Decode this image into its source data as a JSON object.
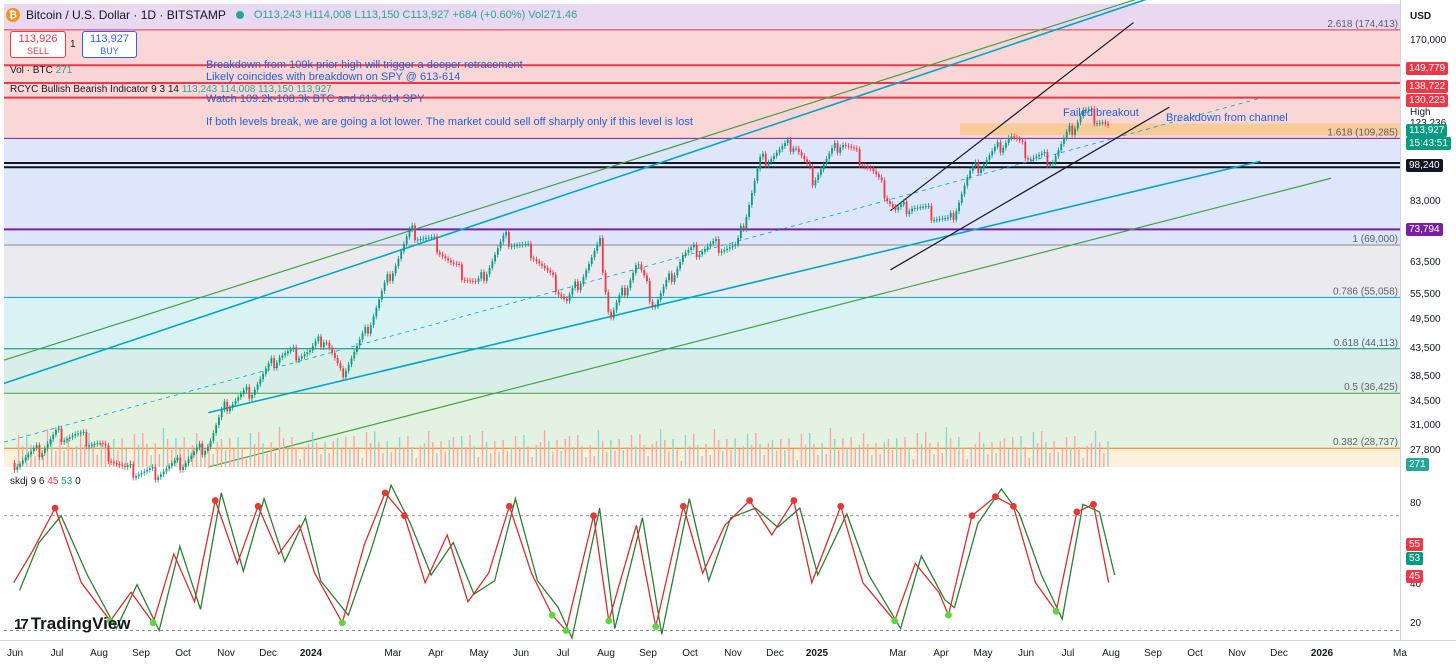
{
  "header": {
    "symbol": "Bitcoin / U.S. Dollar · 1D · BITSTAMP",
    "open": "O113,243",
    "high": "H114,008",
    "low": "L113,150",
    "close": "C113,927",
    "change": "+684 (+0.60%)",
    "volume": "Vol271.46",
    "sell_price": "113,926",
    "sell_label": "SELL",
    "buy_price": "113,927",
    "buy_label": "BUY",
    "quantity": "1",
    "vol_label": "Vol · BTC",
    "vol_value": "271",
    "indicator_label": "RCYC Bullish Bearish Indicator 9 3 14",
    "indicator_values": "113,243  114,008  113,150  113,927"
  },
  "annotations": [
    "Breakdown from 109k prior high will trigger a deeper retracement",
    "Likely coincides with breakdown on SPY @ 613-614",
    "Watch 109.2k-108.3k BTC and 613-614 SPY",
    "If both levels break, we are going a lot lower. The market could sell off sharply only if this level is lost",
    "Failed breakout",
    "Breakdown from channel"
  ],
  "price_axis": {
    "currency": "USD",
    "ticks": [
      "170,000",
      "83,000",
      "63,500",
      "55,500",
      "49,500",
      "43,500",
      "38,500",
      "34,500",
      "31,000",
      "27,800"
    ],
    "tags": [
      {
        "text": "149,779",
        "color": "#f23645"
      },
      {
        "text": "138,722",
        "color": "#f23645"
      },
      {
        "text": "130,223",
        "color": "#f23645"
      },
      {
        "text": "113,927",
        "color": "#089981"
      },
      {
        "text": "15:43:51",
        "color": "#089981"
      },
      {
        "text": "98,240",
        "color": "#131722"
      },
      {
        "text": "73,794",
        "color": "#7b1fa2"
      },
      {
        "text": "271",
        "color": "#26a69a"
      }
    ],
    "high_label": "High",
    "high_value": "123,236"
  },
  "fib_labels": [
    "2.618 (174,413)",
    "1.618 (109,285)",
    "1 (69,000)",
    "0.786 (55,058)",
    "0.618 (44,113)",
    "0.5 (36,425)",
    "0.382 (28,737)"
  ],
  "oscillator": {
    "name": "skdj",
    "p1": "9",
    "p2": "6",
    "k_value": "45",
    "d_value": "53",
    "zero": "0",
    "ticks": [
      "80",
      "40",
      "20"
    ],
    "tags": [
      {
        "text": "55",
        "color": "#f23645"
      },
      {
        "text": "53",
        "color": "#089981"
      },
      {
        "text": "45",
        "color": "#f23645"
      }
    ]
  },
  "time_axis": [
    {
      "label": "Jun",
      "bold": false
    },
    {
      "label": "Jul",
      "bold": false
    },
    {
      "label": "Aug",
      "bold": false
    },
    {
      "label": "Sep",
      "bold": false
    },
    {
      "label": "Oct",
      "bold": false
    },
    {
      "label": "Nov",
      "bold": false
    },
    {
      "label": "Dec",
      "bold": false
    },
    {
      "label": "2024",
      "bold": true
    },
    {
      "label": "Mar",
      "bold": false
    },
    {
      "label": "Apr",
      "bold": false
    },
    {
      "label": "May",
      "bold": false
    },
    {
      "label": "Jun",
      "bold": false
    },
    {
      "label": "Jul",
      "bold": false
    },
    {
      "label": "Aug",
      "bold": false
    },
    {
      "label": "Sep",
      "bold": false
    },
    {
      "label": "Oct",
      "bold": false
    },
    {
      "label": "Nov",
      "bold": false
    },
    {
      "label": "Dec",
      "bold": false
    },
    {
      "label": "2025",
      "bold": true
    },
    {
      "label": "Mar",
      "bold": false
    },
    {
      "label": "Apr",
      "bold": false
    },
    {
      "label": "May",
      "bold": false
    },
    {
      "label": "Jun",
      "bold": false
    },
    {
      "label": "Jul",
      "bold": false
    },
    {
      "label": "Aug",
      "bold": false
    },
    {
      "label": "Sep",
      "bold": false
    },
    {
      "label": "Oct",
      "bold": false
    },
    {
      "label": "Nov",
      "bold": false
    },
    {
      "label": "Dec",
      "bold": false
    },
    {
      "label": "2026",
      "bold": true
    },
    {
      "label": "Ma",
      "bold": false
    }
  ],
  "branding": {
    "logo_text": "TradingView"
  },
  "colors": {
    "up": "#089981",
    "down": "#f23645",
    "channel": "#00a6c8",
    "long_channel": "#43a047",
    "resistance": "#f23645",
    "support": "#131722",
    "pivot": "#7b1fa2",
    "fib_zone": "#f5a623"
  },
  "chart_data": {
    "type": "candlestick",
    "title": "Bitcoin / U.S. Dollar · 1D · BITSTAMP",
    "y_scale": "log",
    "ylim": [
      26500,
      195000
    ],
    "x_range": [
      "2023-05-25",
      "2026-03-01"
    ],
    "horizontal_levels": [
      {
        "value": 174413,
        "label": "2.618 (174,413)"
      },
      {
        "value": 149779
      },
      {
        "value": 138722
      },
      {
        "value": 130223
      },
      {
        "value": 109285,
        "label": "1.618 (109,285)"
      },
      {
        "value": 98240
      },
      {
        "value": 73794
      },
      {
        "value": 69000,
        "label": "1 (69,000)"
      },
      {
        "value": 55058,
        "label": "0.786 (55,058)"
      },
      {
        "value": 44113,
        "label": "0.618 (44,113)"
      },
      {
        "value": 36425,
        "label": "0.5 (36,425)"
      },
      {
        "value": 28737,
        "label": "0.382 (28,737)"
      }
    ],
    "price_path": [
      [
        "2023-06-01",
        27000
      ],
      [
        "2023-06-20",
        28500
      ],
      [
        "2023-07-01",
        30500
      ],
      [
        "2023-07-15",
        30300
      ],
      [
        "2023-08-01",
        29200
      ],
      [
        "2023-08-20",
        26100
      ],
      [
        "2023-09-10",
        25800
      ],
      [
        "2023-10-01",
        27000
      ],
      [
        "2023-10-20",
        29500
      ],
      [
        "2023-11-01",
        34500
      ],
      [
        "2023-11-20",
        37000
      ],
      [
        "2023-12-10",
        43000
      ],
      [
        "2024-01-01",
        43500
      ],
      [
        "2024-01-12",
        46500
      ],
      [
        "2024-01-23",
        39500
      ],
      [
        "2024-02-10",
        47000
      ],
      [
        "2024-02-28",
        61000
      ],
      [
        "2024-03-14",
        73000
      ],
      [
        "2024-04-01",
        69500
      ],
      [
        "2024-04-13",
        63000
      ],
      [
        "2024-05-01",
        58000
      ],
      [
        "2024-05-21",
        71000
      ],
      [
        "2024-06-10",
        67000
      ],
      [
        "2024-07-05",
        54000
      ],
      [
        "2024-07-29",
        69000
      ],
      [
        "2024-08-05",
        50000
      ],
      [
        "2024-08-25",
        64000
      ],
      [
        "2024-09-06",
        53000
      ],
      [
        "2024-09-27",
        66000
      ],
      [
        "2024-10-20",
        69000
      ],
      [
        "2024-11-05",
        68000
      ],
      [
        "2024-11-22",
        99000
      ],
      [
        "2024-12-17",
        107000
      ],
      [
        "2024-12-30",
        92000
      ],
      [
        "2025-01-20",
        108000
      ],
      [
        "2025-02-10",
        96000
      ],
      [
        "2025-02-28",
        80000
      ],
      [
        "2025-03-12",
        82000
      ],
      [
        "2025-04-08",
        76000
      ],
      [
        "2025-04-22",
        93000
      ],
      [
        "2025-05-12",
        104000
      ],
      [
        "2025-05-22",
        111000
      ],
      [
        "2025-06-05",
        101000
      ],
      [
        "2025-06-22",
        100000
      ],
      [
        "2025-07-14",
        123000
      ],
      [
        "2025-07-28",
        118000
      ],
      [
        "2025-08-02",
        113927
      ]
    ],
    "oscillator_k": [
      [
        "2023-06-01",
        45
      ],
      [
        "2023-06-15",
        62
      ],
      [
        "2023-07-01",
        84
      ],
      [
        "2023-07-20",
        45
      ],
      [
        "2023-08-10",
        25
      ],
      [
        "2023-08-25",
        40
      ],
      [
        "2023-09-10",
        24
      ],
      [
        "2023-09-25",
        60
      ],
      [
        "2023-10-10",
        35
      ],
      [
        "2023-10-25",
        88
      ],
      [
        "2023-11-10",
        55
      ],
      [
        "2023-11-25",
        85
      ],
      [
        "2023-12-10",
        60
      ],
      [
        "2023-12-25",
        75
      ],
      [
        "2024-01-05",
        50
      ],
      [
        "2024-01-25",
        24
      ],
      [
        "2024-02-10",
        65
      ],
      [
        "2024-02-25",
        92
      ],
      [
        "2024-03-10",
        80
      ],
      [
        "2024-03-25",
        45
      ],
      [
        "2024-04-10",
        70
      ],
      [
        "2024-04-25",
        35
      ],
      [
        "2024-05-10",
        50
      ],
      [
        "2024-05-25",
        85
      ],
      [
        "2024-06-10",
        50
      ],
      [
        "2024-06-25",
        28
      ],
      [
        "2024-07-05",
        20
      ],
      [
        "2024-07-25",
        80
      ],
      [
        "2024-08-05",
        25
      ],
      [
        "2024-08-25",
        75
      ],
      [
        "2024-09-08",
        22
      ],
      [
        "2024-09-28",
        85
      ],
      [
        "2024-10-12",
        50
      ],
      [
        "2024-10-28",
        75
      ],
      [
        "2024-11-15",
        88
      ],
      [
        "2024-12-01",
        70
      ],
      [
        "2024-12-17",
        88
      ],
      [
        "2024-12-30",
        45
      ],
      [
        "2025-01-20",
        85
      ],
      [
        "2025-02-05",
        45
      ],
      [
        "2025-02-28",
        25
      ],
      [
        "2025-03-15",
        55
      ],
      [
        "2025-04-01",
        40
      ],
      [
        "2025-04-08",
        28
      ],
      [
        "2025-04-25",
        80
      ],
      [
        "2025-05-12",
        90
      ],
      [
        "2025-05-25",
        85
      ],
      [
        "2025-06-10",
        45
      ],
      [
        "2025-06-25",
        30
      ],
      [
        "2025-07-10",
        82
      ],
      [
        "2025-07-22",
        86
      ],
      [
        "2025-08-02",
        45
      ]
    ]
  }
}
